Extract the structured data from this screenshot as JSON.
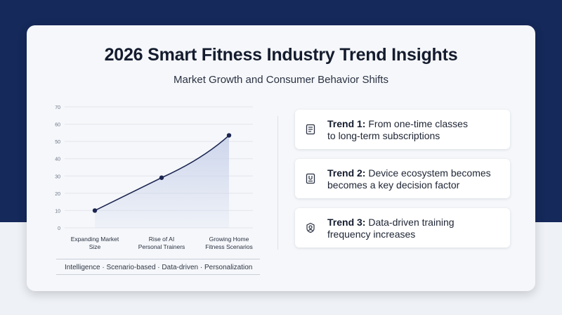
{
  "title": "2026 Smart Fitness Industry Trend Insights",
  "subtitle": "Market Growth and Consumer Behavior Shifts",
  "chart_data": {
    "type": "line",
    "categories": [
      "Expanding Market Size",
      "Rise of AI Personal Trainers",
      "Growing Home Fitness Scenarios"
    ],
    "category_lines": [
      [
        "Expanding Market",
        "Size"
      ],
      [
        "Rise of AI",
        "Personal Trainers"
      ],
      [
        "Growing Home",
        "Fitness Scenarios"
      ]
    ],
    "values": [
      10,
      29,
      53.5
    ],
    "ylim": [
      0,
      70
    ],
    "yticks": [
      0,
      10,
      20,
      30,
      40,
      50,
      60,
      70
    ],
    "grid": true,
    "area_fill": true,
    "line_color": "#1b2550",
    "fill_color": "#c9d2ea"
  },
  "keywords": "Intelligence · Scenario-based · Data-driven · Personalization",
  "trends": [
    {
      "label": "Trend 1:",
      "line1": "From one-time classes",
      "line2": "to long-term subscriptions",
      "icon": "document-list-icon"
    },
    {
      "label": "Trend 2:",
      "line1": "Device ecosystem becomes",
      "line2": "becomes a key decision factor",
      "icon": "device-icon"
    },
    {
      "label": "Trend 3:",
      "line1": "Data-driven training",
      "line2": "frequency increases",
      "icon": "badge-icon"
    }
  ]
}
